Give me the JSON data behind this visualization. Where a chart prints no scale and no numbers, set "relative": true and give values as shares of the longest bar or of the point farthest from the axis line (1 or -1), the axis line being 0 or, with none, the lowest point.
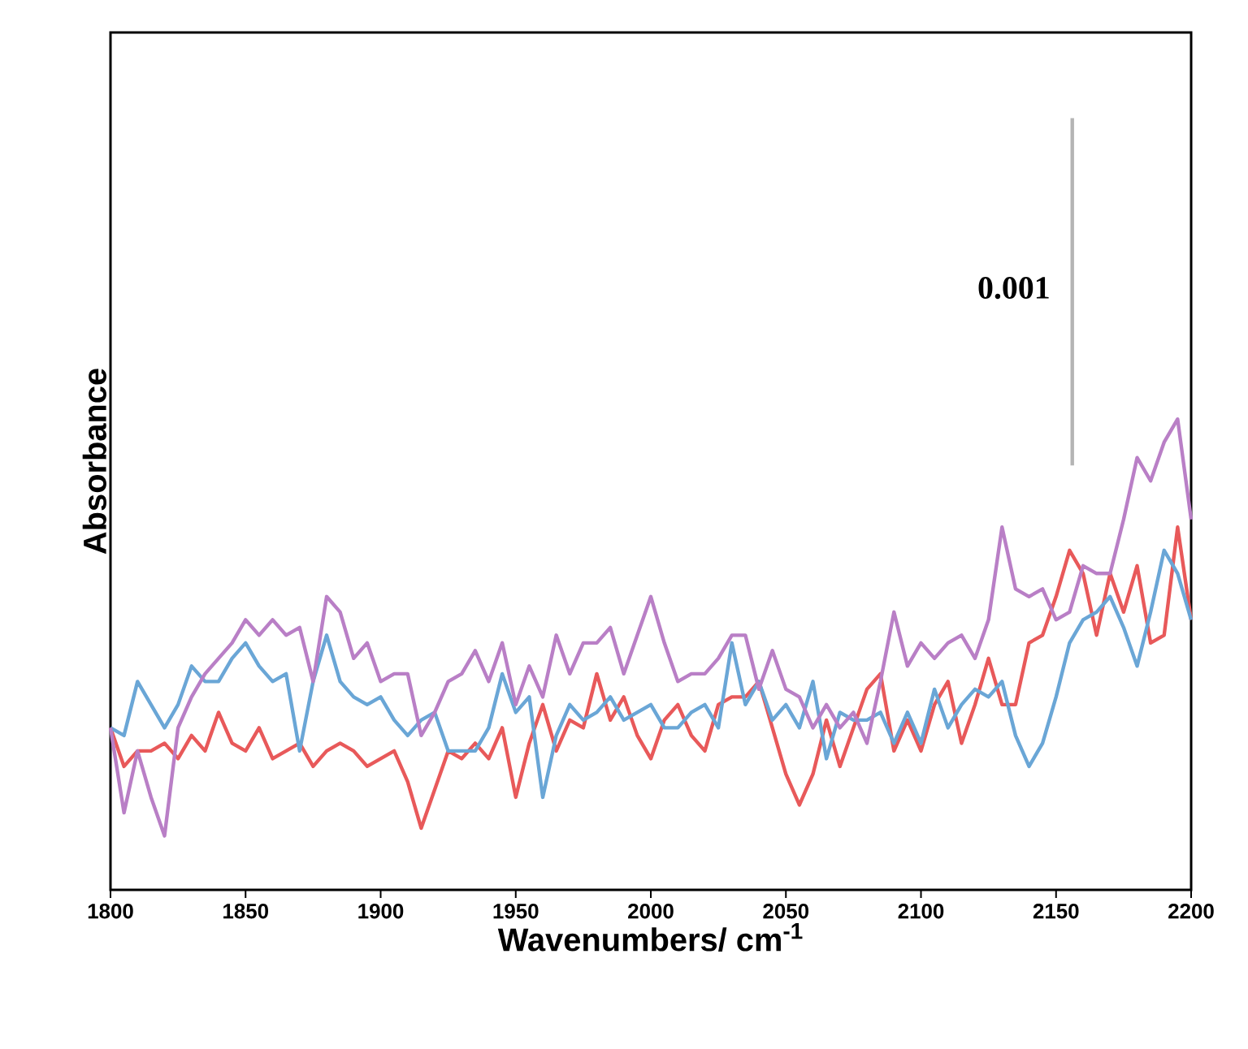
{
  "chart_data": {
    "type": "line",
    "relative": true,
    "xlabel": "Wavenumbers/ cm$^{-1}$",
    "ylabel": "Absorbance",
    "xlim": [
      1800,
      2200
    ],
    "xticks": [
      1800,
      1850,
      1900,
      1950,
      2000,
      2050,
      2100,
      2150,
      2200
    ],
    "x": [
      1800,
      1805,
      1810,
      1815,
      1820,
      1825,
      1830,
      1835,
      1840,
      1845,
      1850,
      1855,
      1860,
      1865,
      1870,
      1875,
      1880,
      1885,
      1890,
      1895,
      1900,
      1905,
      1910,
      1915,
      1920,
      1925,
      1930,
      1935,
      1940,
      1945,
      1950,
      1955,
      1960,
      1965,
      1970,
      1975,
      1980,
      1985,
      1990,
      1995,
      2000,
      2005,
      2010,
      2015,
      2020,
      2025,
      2030,
      2035,
      2040,
      2045,
      2050,
      2055,
      2060,
      2065,
      2070,
      2075,
      2080,
      2085,
      2090,
      2095,
      2100,
      2105,
      2110,
      2115,
      2120,
      2125,
      2130,
      2135,
      2140,
      2145,
      2150,
      2155,
      2160,
      2165,
      2170,
      2175,
      2180,
      2185,
      2190,
      2195,
      2200
    ],
    "series": [
      {
        "color": "#e8595a",
        "values": [
          0.21,
          0.16,
          0.18,
          0.18,
          0.19,
          0.17,
          0.2,
          0.18,
          0.23,
          0.19,
          0.18,
          0.21,
          0.17,
          0.18,
          0.19,
          0.16,
          0.18,
          0.19,
          0.18,
          0.16,
          0.17,
          0.18,
          0.14,
          0.08,
          0.13,
          0.18,
          0.17,
          0.19,
          0.17,
          0.21,
          0.12,
          0.19,
          0.24,
          0.18,
          0.22,
          0.21,
          0.28,
          0.22,
          0.25,
          0.2,
          0.17,
          0.22,
          0.24,
          0.2,
          0.18,
          0.24,
          0.25,
          0.25,
          0.27,
          0.21,
          0.15,
          0.11,
          0.15,
          0.22,
          0.16,
          0.21,
          0.26,
          0.28,
          0.18,
          0.22,
          0.18,
          0.24,
          0.27,
          0.19,
          0.24,
          0.3,
          0.24,
          0.24,
          0.32,
          0.33,
          0.38,
          0.44,
          0.41,
          0.33,
          0.41,
          0.36,
          0.42,
          0.32,
          0.33,
          0.47,
          0.35
        ]
      },
      {
        "color": "#6aa6d6",
        "values": [
          0.21,
          0.2,
          0.27,
          0.24,
          0.21,
          0.24,
          0.29,
          0.27,
          0.27,
          0.3,
          0.32,
          0.29,
          0.27,
          0.28,
          0.18,
          0.27,
          0.33,
          0.27,
          0.25,
          0.24,
          0.25,
          0.22,
          0.2,
          0.22,
          0.23,
          0.18,
          0.18,
          0.18,
          0.21,
          0.28,
          0.23,
          0.25,
          0.12,
          0.2,
          0.24,
          0.22,
          0.23,
          0.25,
          0.22,
          0.23,
          0.24,
          0.21,
          0.21,
          0.23,
          0.24,
          0.21,
          0.32,
          0.24,
          0.27,
          0.22,
          0.24,
          0.21,
          0.27,
          0.17,
          0.23,
          0.22,
          0.22,
          0.23,
          0.19,
          0.23,
          0.19,
          0.26,
          0.21,
          0.24,
          0.26,
          0.25,
          0.27,
          0.2,
          0.16,
          0.19,
          0.25,
          0.32,
          0.35,
          0.36,
          0.38,
          0.34,
          0.29,
          0.36,
          0.44,
          0.41,
          0.35
        ]
      },
      {
        "color": "#b97fc6",
        "values": [
          0.21,
          0.1,
          0.18,
          0.12,
          0.07,
          0.21,
          0.25,
          0.28,
          0.3,
          0.32,
          0.35,
          0.33,
          0.35,
          0.33,
          0.34,
          0.27,
          0.38,
          0.36,
          0.3,
          0.32,
          0.27,
          0.28,
          0.28,
          0.2,
          0.23,
          0.27,
          0.28,
          0.31,
          0.27,
          0.32,
          0.24,
          0.29,
          0.25,
          0.33,
          0.28,
          0.32,
          0.32,
          0.34,
          0.28,
          0.33,
          0.38,
          0.32,
          0.27,
          0.28,
          0.28,
          0.3,
          0.33,
          0.33,
          0.26,
          0.31,
          0.26,
          0.25,
          0.21,
          0.24,
          0.21,
          0.23,
          0.19,
          0.27,
          0.36,
          0.29,
          0.32,
          0.3,
          0.32,
          0.33,
          0.3,
          0.35,
          0.47,
          0.39,
          0.38,
          0.39,
          0.35,
          0.36,
          0.42,
          0.41,
          0.41,
          0.48,
          0.56,
          0.53,
          0.58,
          0.61,
          0.48
        ]
      },
      {
        "color": "#b4b4b4",
        "x": [
          2156,
          2156
        ],
        "values": [
          0.55,
          1.0
        ]
      }
    ],
    "annotations": [
      {
        "text": "0.001",
        "x": 2156,
        "y": 0.78
      }
    ]
  }
}
